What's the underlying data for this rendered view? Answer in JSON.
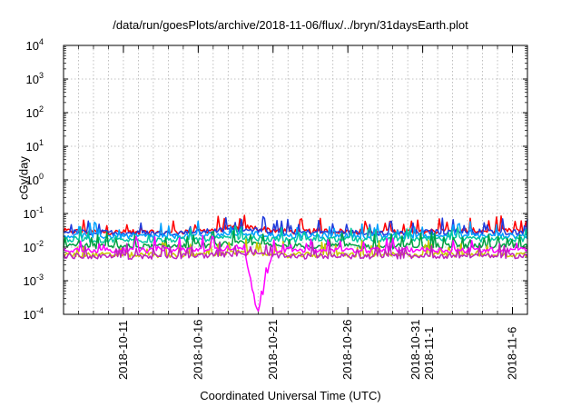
{
  "chart_data": {
    "type": "line",
    "title": "/data/run/goesPlots/archive/2018-11-06/flux/../bryn/31daysEarth.plot",
    "xlabel": "Coordinated Universal Time (UTC)",
    "ylabel": "cGy/day",
    "y_scale": "log",
    "ylim": [
      0.0001,
      10000
    ],
    "y_ticks": [
      {
        "value": 0.0001,
        "base": "10",
        "exp": "-4"
      },
      {
        "value": 0.001,
        "base": "10",
        "exp": "-3"
      },
      {
        "value": 0.01,
        "base": "10",
        "exp": "-2"
      },
      {
        "value": 0.1,
        "base": "10",
        "exp": "-1"
      },
      {
        "value": 1,
        "base": "10",
        "exp": "0"
      },
      {
        "value": 10,
        "base": "10",
        "exp": "1"
      },
      {
        "value": 100,
        "base": "10",
        "exp": "2"
      },
      {
        "value": 1000,
        "base": "10",
        "exp": "3"
      },
      {
        "value": 10000,
        "base": "10",
        "exp": "4"
      }
    ],
    "xlim": [
      "2018-10-07",
      "2018-11-07"
    ],
    "x_ticks": [
      {
        "value": "2018-10-11",
        "lines": [
          "2018-10-11"
        ]
      },
      {
        "value": "2018-10-16",
        "lines": [
          "2018-10-16"
        ]
      },
      {
        "value": "2018-10-21",
        "lines": [
          "2018-10-21"
        ]
      },
      {
        "value": "2018-10-26",
        "lines": [
          "2018-10-26"
        ]
      },
      {
        "value": "2018-10-31",
        "lines": [
          "2018-10-31",
          "2018-11-1"
        ]
      },
      {
        "value": "2018-11-06",
        "lines": [
          "2018-11-6"
        ]
      }
    ],
    "grid": true,
    "colors": [
      "#ff0000",
      "#1f3bdc",
      "#00a0ff",
      "#00c8a0",
      "#00a040",
      "#c8c800",
      "#ff00ff",
      "#c020c0"
    ],
    "series": [
      {
        "color": "#ff0000",
        "x": [
          "2018-10-07",
          "2018-10-10",
          "2018-10-13",
          "2018-10-16",
          "2018-10-19",
          "2018-10-22",
          "2018-10-25",
          "2018-10-28",
          "2018-10-31",
          "2018-11-03",
          "2018-11-07"
        ],
        "y": [
          0.03,
          0.028,
          0.027,
          0.03,
          0.04,
          0.029,
          0.03,
          0.028,
          0.03,
          0.031,
          0.03
        ]
      },
      {
        "color": "#1f3bdc",
        "x": [
          "2018-10-07",
          "2018-10-10",
          "2018-10-13",
          "2018-10-16",
          "2018-10-19",
          "2018-10-22",
          "2018-10-25",
          "2018-10-28",
          "2018-10-31",
          "2018-11-03",
          "2018-11-07"
        ],
        "y": [
          0.028,
          0.027,
          0.026,
          0.028,
          0.035,
          0.027,
          0.028,
          0.026,
          0.028,
          0.029,
          0.028
        ]
      },
      {
        "color": "#00a0ff",
        "x": [
          "2018-10-07",
          "2018-10-10",
          "2018-10-13",
          "2018-10-16",
          "2018-10-19",
          "2018-10-22",
          "2018-10-25",
          "2018-10-28",
          "2018-10-31",
          "2018-11-03",
          "2018-11-07"
        ],
        "y": [
          0.022,
          0.021,
          0.021,
          0.022,
          0.026,
          0.021,
          0.022,
          0.021,
          0.022,
          0.022,
          0.022
        ]
      },
      {
        "color": "#00c8a0",
        "x": [
          "2018-10-07",
          "2018-10-10",
          "2018-10-13",
          "2018-10-16",
          "2018-10-19",
          "2018-10-22",
          "2018-10-25",
          "2018-10-28",
          "2018-10-31",
          "2018-11-03",
          "2018-11-07"
        ],
        "y": [
          0.017,
          0.016,
          0.016,
          0.017,
          0.019,
          0.016,
          0.017,
          0.016,
          0.017,
          0.017,
          0.017
        ]
      },
      {
        "color": "#00a040",
        "x": [
          "2018-10-07",
          "2018-10-10",
          "2018-10-13",
          "2018-10-16",
          "2018-10-19",
          "2018-10-22",
          "2018-10-25",
          "2018-10-28",
          "2018-10-31",
          "2018-11-03",
          "2018-11-07"
        ],
        "y": [
          0.011,
          0.0105,
          0.0105,
          0.011,
          0.013,
          0.0105,
          0.011,
          0.0105,
          0.011,
          0.011,
          0.011
        ]
      },
      {
        "color": "#c8c800",
        "x": [
          "2018-10-07",
          "2018-10-10",
          "2018-10-13",
          "2018-10-16",
          "2018-10-19",
          "2018-10-22",
          "2018-10-25",
          "2018-10-28",
          "2018-10-31",
          "2018-11-03",
          "2018-11-07"
        ],
        "y": [
          0.006,
          0.0058,
          0.0058,
          0.006,
          0.007,
          0.0058,
          0.006,
          0.0058,
          0.006,
          0.006,
          0.006
        ]
      },
      {
        "color": "#ff00ff",
        "x": [
          "2018-10-07",
          "2018-10-10",
          "2018-10-13",
          "2018-10-16",
          "2018-10-19",
          "2018-10-20",
          "2018-10-21",
          "2018-10-24",
          "2018-10-27",
          "2018-10-30",
          "2018-11-02",
          "2018-11-07"
        ],
        "y": [
          0.0085,
          0.008,
          0.008,
          0.0085,
          0.01,
          0.0001,
          0.0085,
          0.008,
          0.008,
          0.0085,
          0.008,
          0.0085
        ]
      },
      {
        "color": "#c020c0",
        "x": [
          "2018-10-07",
          "2018-10-10",
          "2018-10-13",
          "2018-10-16",
          "2018-10-19",
          "2018-10-22",
          "2018-10-25",
          "2018-10-28",
          "2018-10-31",
          "2018-11-03",
          "2018-11-07"
        ],
        "y": [
          0.0055,
          0.0052,
          0.0052,
          0.0055,
          0.0065,
          0.0052,
          0.0055,
          0.0052,
          0.0055,
          0.0055,
          0.0055
        ]
      }
    ]
  }
}
